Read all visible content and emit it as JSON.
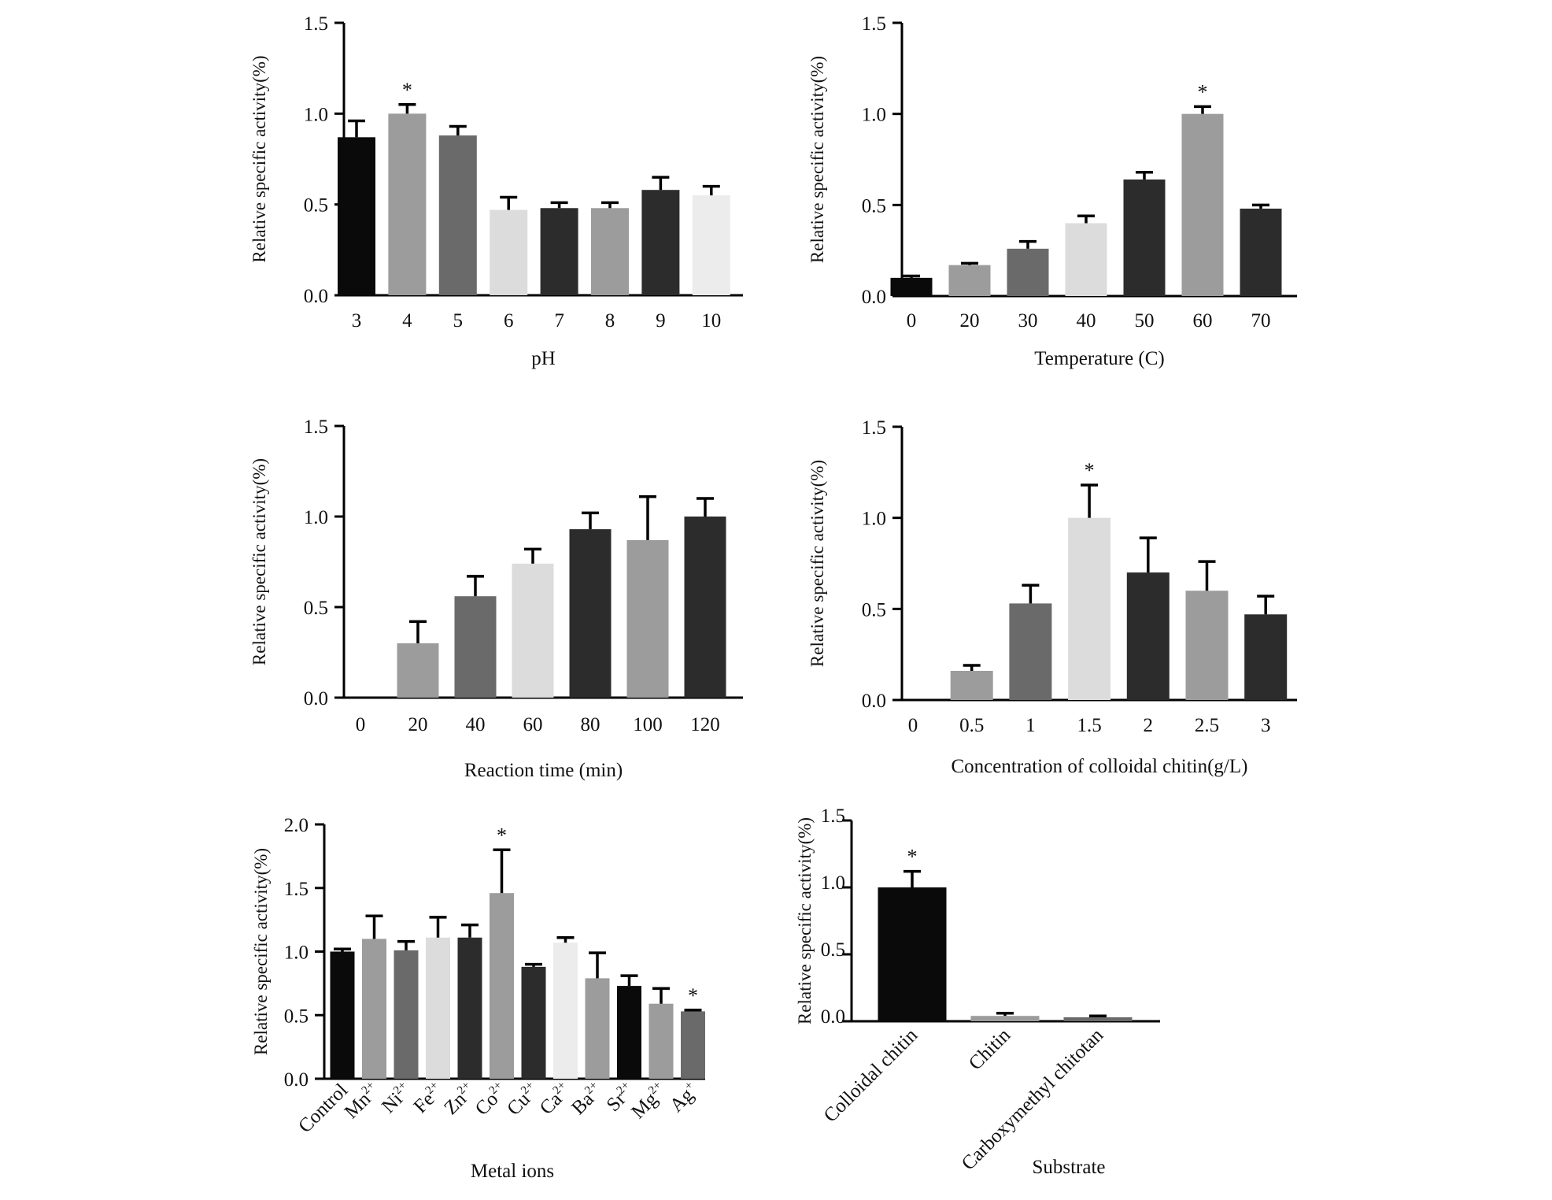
{
  "chart_data": [
    {
      "type": "bar",
      "id": "ph",
      "xlabel": "pH",
      "ylabel": "Relative specific activity(%)",
      "ylim": [
        0,
        1.5
      ],
      "yticks": [
        "0.0",
        "0.5",
        "1.0",
        "1.5"
      ],
      "categories": [
        "3",
        "4",
        "5",
        "6",
        "7",
        "8",
        "9",
        "10"
      ],
      "values": [
        0.87,
        1.0,
        0.88,
        0.47,
        0.48,
        0.48,
        0.58,
        0.55
      ],
      "errors": [
        0.09,
        0.05,
        0.05,
        0.07,
        0.03,
        0.03,
        0.07,
        0.05
      ],
      "colors": [
        "#0a0a0a",
        "#9c9c9c",
        "#6a6a6a",
        "#dcdcdc",
        "#2c2c2c",
        "#9c9c9c",
        "#2c2c2c",
        "#ececec"
      ],
      "significance": [
        1
      ],
      "sig_mark": "*"
    },
    {
      "type": "bar",
      "id": "temperature",
      "xlabel": "Temperature (C)",
      "ylabel": "Relative specific activity(%)",
      "ylim": [
        0,
        1.5
      ],
      "yticks": [
        "0.0",
        "0.5",
        "1.0",
        "1.5"
      ],
      "categories": [
        "0",
        "20",
        "30",
        "40",
        "50",
        "60",
        "70"
      ],
      "values": [
        0.1,
        0.17,
        0.26,
        0.4,
        0.64,
        1.0,
        0.48
      ],
      "errors": [
        0.01,
        0.01,
        0.04,
        0.04,
        0.04,
        0.04,
        0.02
      ],
      "colors": [
        "#0a0a0a",
        "#9c9c9c",
        "#6a6a6a",
        "#dcdcdc",
        "#2c2c2c",
        "#9c9c9c",
        "#2c2c2c"
      ],
      "significance": [
        5
      ],
      "sig_mark": "*"
    },
    {
      "type": "bar",
      "id": "reaction-time",
      "xlabel": "Reaction time (min)",
      "ylabel": "Relative specific activity(%)",
      "ylim": [
        0,
        1.5
      ],
      "yticks": [
        "0.0",
        "0.5",
        "1.0",
        "1.5"
      ],
      "categories": [
        "0",
        "20",
        "40",
        "60",
        "80",
        "100",
        "120"
      ],
      "values": [
        0.0,
        0.3,
        0.56,
        0.74,
        0.93,
        0.87,
        1.0
      ],
      "errors": [
        0.0,
        0.12,
        0.11,
        0.08,
        0.09,
        0.24,
        0.1
      ],
      "colors": [
        "#0a0a0a",
        "#9c9c9c",
        "#6a6a6a",
        "#dcdcdc",
        "#2c2c2c",
        "#9c9c9c",
        "#2c2c2c"
      ],
      "significance": [],
      "sig_mark": "*"
    },
    {
      "type": "bar",
      "id": "colloidal-chitin",
      "xlabel": "Concentration of colloidal chitin(g/L)",
      "ylabel": "Relative specific activity(%)",
      "ylim": [
        0,
        1.5
      ],
      "yticks": [
        "0.0",
        "0.5",
        "1.0",
        "1.5"
      ],
      "categories": [
        "0",
        "0.5",
        "1",
        "1.5",
        "2",
        "2.5",
        "3"
      ],
      "values": [
        0.0,
        0.16,
        0.53,
        1.0,
        0.7,
        0.6,
        0.47
      ],
      "errors": [
        0.0,
        0.03,
        0.1,
        0.18,
        0.19,
        0.16,
        0.1
      ],
      "colors": [
        "#0a0a0a",
        "#9c9c9c",
        "#6a6a6a",
        "#dcdcdc",
        "#2c2c2c",
        "#9c9c9c",
        "#2c2c2c"
      ],
      "significance": [
        3
      ],
      "sig_mark": "*"
    },
    {
      "type": "bar",
      "id": "metal-ions",
      "xlabel": "Metal ions",
      "ylabel": "Relative specific activity(%)",
      "ylim": [
        0,
        2.0
      ],
      "yticks": [
        "0.0",
        "0.5",
        "1.0",
        "1.5",
        "2.0"
      ],
      "categories": [
        {
          "base": "Control",
          "sup": ""
        },
        {
          "base": "Mn",
          "sup": "2+"
        },
        {
          "base": "Ni",
          "sup": "2+"
        },
        {
          "base": "Fe",
          "sup": "2+"
        },
        {
          "base": "Zn",
          "sup": "2+"
        },
        {
          "base": "Co",
          "sup": "2+"
        },
        {
          "base": "Cu",
          "sup": "2+"
        },
        {
          "base": "Ca",
          "sup": "2+"
        },
        {
          "base": "Ba",
          "sup": "2+"
        },
        {
          "base": "Sr",
          "sup": "2+"
        },
        {
          "base": "Mg",
          "sup": "2+"
        },
        {
          "base": "Ag",
          "sup": "+"
        }
      ],
      "values": [
        1.0,
        1.1,
        1.01,
        1.11,
        1.11,
        1.46,
        0.88,
        1.07,
        0.79,
        0.73,
        0.59,
        0.53
      ],
      "errors": [
        0.02,
        0.18,
        0.07,
        0.16,
        0.1,
        0.34,
        0.02,
        0.04,
        0.2,
        0.08,
        0.12,
        0.01
      ],
      "colors": [
        "#0a0a0a",
        "#9c9c9c",
        "#6a6a6a",
        "#dcdcdc",
        "#2c2c2c",
        "#9c9c9c",
        "#2c2c2c",
        "#ececec",
        "#9c9c9c",
        "#0a0a0a",
        "#9c9c9c",
        "#6a6a6a"
      ],
      "significance": [
        5,
        11
      ],
      "sig_mark": "*"
    },
    {
      "type": "bar",
      "id": "substrate",
      "xlabel": "Substrate",
      "ylabel": "Relative specific activity(%)",
      "ylim": [
        0,
        1.5
      ],
      "yticks": [
        "0.0",
        "0.5",
        "1.0",
        "1.5"
      ],
      "categories": [
        "Colloidal chitin",
        "Chitin",
        "Carboxymethyl chitotan"
      ],
      "values": [
        1.0,
        0.04,
        0.03
      ],
      "errors": [
        0.12,
        0.02,
        0.01
      ],
      "colors": [
        "#0a0a0a",
        "#9c9c9c",
        "#6a6a6a"
      ],
      "significance": [
        0
      ],
      "sig_mark": "*"
    }
  ]
}
